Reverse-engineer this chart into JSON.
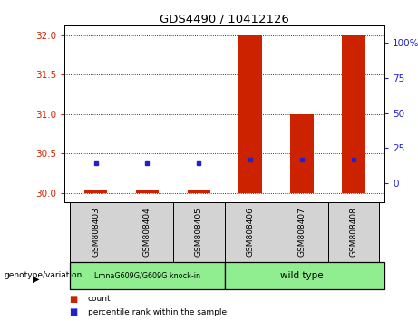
{
  "title": "GDS4490 / 10412126",
  "samples": [
    "GSM808403",
    "GSM808404",
    "GSM808405",
    "GSM808406",
    "GSM808407",
    "GSM808408"
  ],
  "group1_label": "LmnaG609G/G609G knock-in",
  "group2_label": "wild type",
  "ylim_left": [
    29.88,
    32.12
  ],
  "yticks_left": [
    30,
    30.5,
    31,
    31.5,
    32
  ],
  "ylim_right": [
    -13.44,
    112
  ],
  "yticks_right": [
    0,
    25,
    50,
    75,
    100
  ],
  "ytick_labels_right": [
    "0",
    "25",
    "50",
    "75",
    "100%"
  ],
  "red_bar_tops": [
    30.03,
    30.03,
    30.03,
    32.0,
    31.0,
    32.0
  ],
  "red_bar_bottom": 30.0,
  "blue_dot_left_y": [
    30.38,
    30.38,
    30.38,
    30.42,
    30.42,
    30.42
  ],
  "bar_color": "#cc2200",
  "dot_color": "#2222cc",
  "left_tick_color": "#cc2200",
  "right_tick_color": "#2222cc",
  "group1_bg": "#90ee90",
  "group2_bg": "#90ee90",
  "sample_bg": "#d3d3d3",
  "bar_width": 0.45,
  "n_samples": 6
}
